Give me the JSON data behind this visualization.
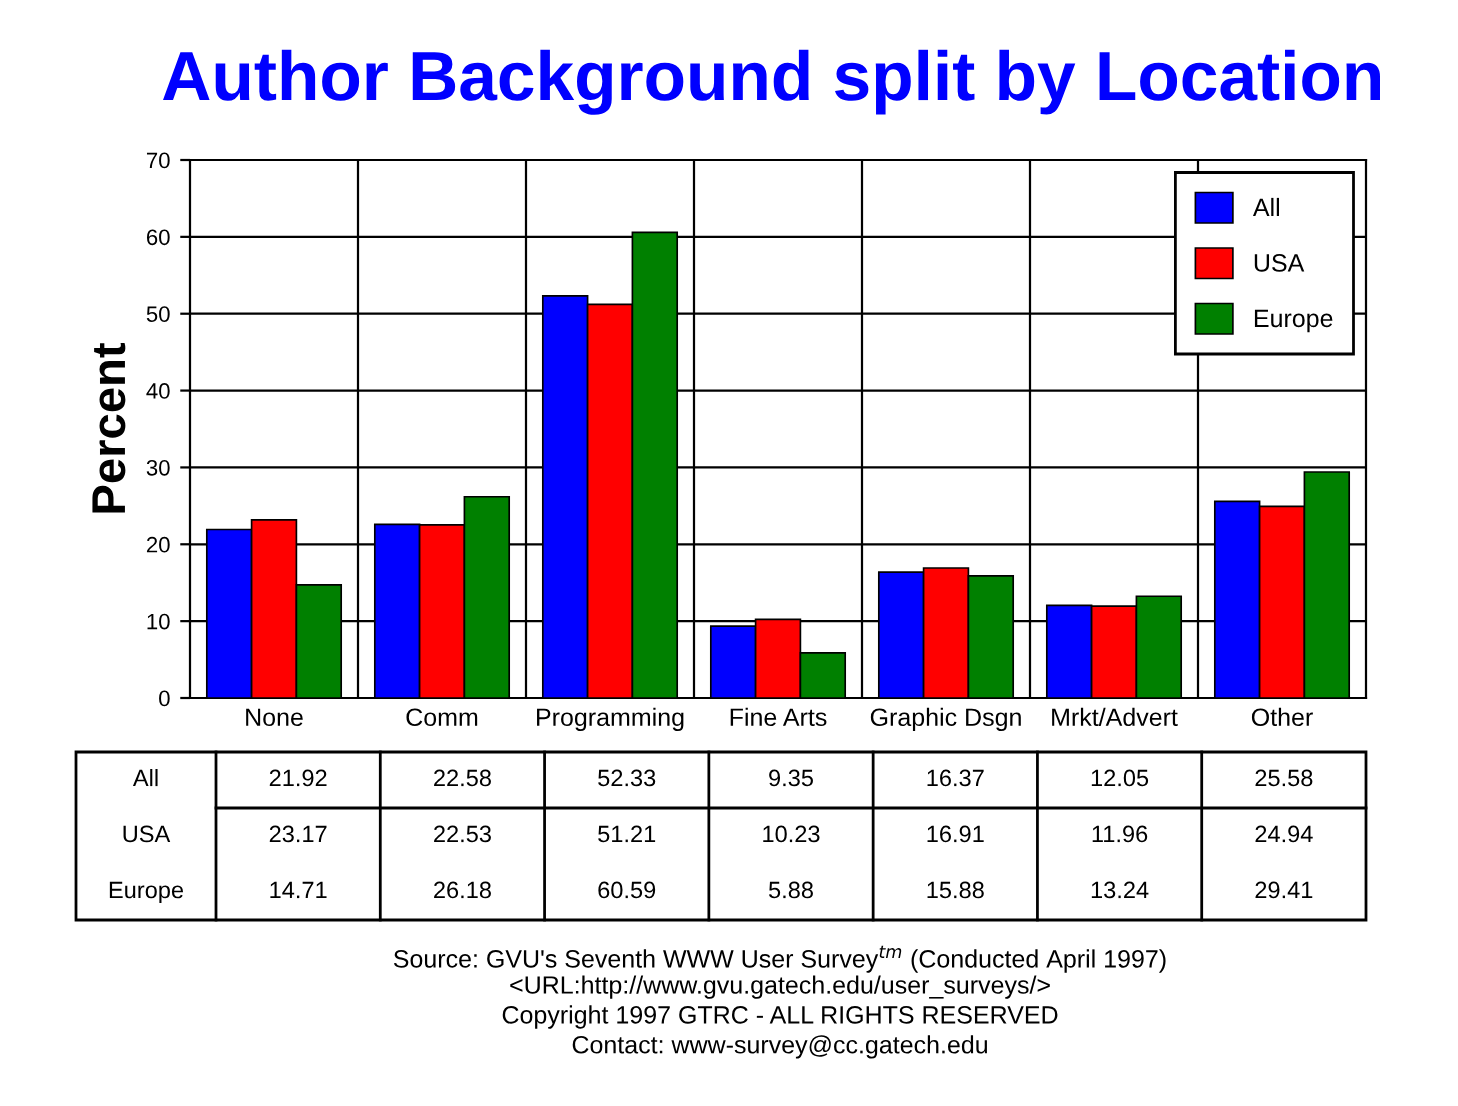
{
  "chart_data": {
    "type": "bar",
    "title": "Author Background split by Location",
    "ylabel": "Percent",
    "categories": [
      "None",
      "Comm",
      "Programming",
      "Fine Arts",
      "Graphic Dsgn",
      "Mrkt/Advert",
      "Other"
    ],
    "series": [
      {
        "name": "All",
        "color": "#0000ff",
        "values": [
          21.92,
          22.58,
          52.33,
          9.35,
          16.37,
          12.05,
          25.58
        ]
      },
      {
        "name": "USA",
        "color": "#ff0000",
        "values": [
          23.17,
          22.53,
          51.21,
          10.23,
          16.91,
          11.96,
          24.94
        ]
      },
      {
        "name": "Europe",
        "color": "#008000",
        "values": [
          14.71,
          26.18,
          60.59,
          5.88,
          15.88,
          13.24,
          29.41
        ]
      }
    ],
    "ylim": [
      0,
      70
    ],
    "yticks": [
      0,
      10,
      20,
      30,
      40,
      50,
      60,
      70
    ],
    "grid": true,
    "legend": "top right",
    "data_labels": true,
    "annotations": [
      "Source: GVU's Seventh WWW User Survey$^{tm}$ (Conducted April 1997)",
      "<URL:http://www.gvu.gatech.edu/user_surveys/>",
      "Copyright 1997 GTRC - ALL RIGHTS RESERVED",
      "Contact: www-survey@cc.gatech.edu"
    ]
  }
}
